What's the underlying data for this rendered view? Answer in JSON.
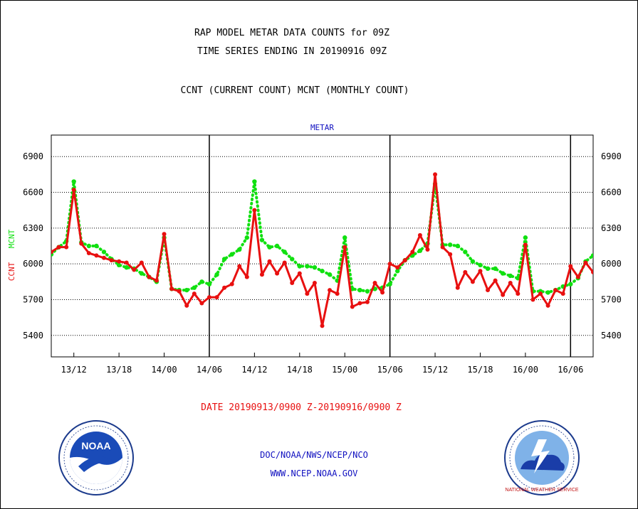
{
  "header": {
    "title_line1": "RAP MODEL METAR DATA COUNTS for 09Z",
    "title_line2": "TIME SERIES ENDING IN 20190916 09Z",
    "subtitle": "CCNT (CURRENT COUNT) MCNT (MONTHLY COUNT)"
  },
  "footer": {
    "date_range": "DATE 20190913/0900 Z-20190916/0900 Z",
    "org": "DOC/NOAA/NWS/NCEP/NCO",
    "url": "WWW.NCEP.NOAA.GOV"
  },
  "logos": {
    "noaa_text": "NOAA",
    "nws_text": "NATIONAL WEATHER SERVICE"
  },
  "colors": {
    "ccnt": "#e81010",
    "mcnt": "#10e010",
    "panel_title": "#1010c0",
    "footer_blue": "#1010c0",
    "footer_red": "#e81010"
  },
  "chart_data": {
    "type": "line",
    "title": "METAR",
    "ylabel_left": [
      "CCNT",
      "MCNT"
    ],
    "ylim": [
      5220,
      7080
    ],
    "yticks": [
      5400,
      5700,
      6000,
      6300,
      6600,
      6900
    ],
    "xlim": [
      0,
      72
    ],
    "xticks": [
      {
        "x": 3,
        "label": "13/12"
      },
      {
        "x": 9,
        "label": "13/18"
      },
      {
        "x": 15,
        "label": "14/00"
      },
      {
        "x": 21,
        "label": "14/06"
      },
      {
        "x": 27,
        "label": "14/12"
      },
      {
        "x": 33,
        "label": "14/18"
      },
      {
        "x": 39,
        "label": "15/00"
      },
      {
        "x": 45,
        "label": "15/06"
      },
      {
        "x": 51,
        "label": "15/12"
      },
      {
        "x": 57,
        "label": "15/18"
      },
      {
        "x": 63,
        "label": "16/00"
      },
      {
        "x": 69,
        "label": "16/06"
      }
    ],
    "day_boundaries": [
      21,
      45,
      69
    ],
    "x": [
      0,
      1,
      2,
      3,
      4,
      5,
      6,
      7,
      8,
      9,
      10,
      11,
      12,
      13,
      14,
      15,
      16,
      17,
      18,
      19,
      20,
      21,
      22,
      23,
      24,
      25,
      26,
      27,
      28,
      29,
      30,
      31,
      32,
      33,
      34,
      35,
      36,
      37,
      38,
      39,
      40,
      41,
      42,
      43,
      44,
      45,
      46,
      47,
      48,
      49,
      50,
      51,
      52,
      53,
      54,
      55,
      56,
      57,
      58,
      59,
      60,
      61,
      62,
      63,
      64,
      65,
      66,
      67,
      68,
      69,
      70,
      71,
      72
    ],
    "series": [
      {
        "name": "CCNT",
        "values": [
          6100,
          6140,
          6140,
          6620,
          6170,
          6090,
          6070,
          6050,
          6030,
          6020,
          6010,
          5950,
          6010,
          5890,
          5860,
          6250,
          5790,
          5770,
          5650,
          5750,
          5670,
          5720,
          5720,
          5800,
          5830,
          5980,
          5890,
          6450,
          5910,
          6020,
          5920,
          6010,
          5840,
          5920,
          5750,
          5840,
          5480,
          5780,
          5750,
          6140,
          5640,
          5670,
          5680,
          5840,
          5760,
          6000,
          5970,
          6030,
          6100,
          6240,
          6120,
          6750,
          6140,
          6080,
          5800,
          5930,
          5850,
          5940,
          5780,
          5860,
          5740,
          5840,
          5750,
          6160,
          5700,
          5750,
          5650,
          5780,
          5750,
          5980,
          5890,
          6010,
          5930
        ]
      },
      {
        "name": "MCNT",
        "values": [
          6080,
          6140,
          6190,
          6690,
          6180,
          6150,
          6150,
          6100,
          6040,
          5990,
          5970,
          5960,
          5920,
          5890,
          5850,
          6220,
          5790,
          5780,
          5780,
          5800,
          5850,
          5830,
          5910,
          6040,
          6080,
          6120,
          6220,
          6690,
          6200,
          6140,
          6150,
          6100,
          6040,
          5980,
          5980,
          5970,
          5940,
          5910,
          5860,
          6220,
          5790,
          5780,
          5770,
          5790,
          5800,
          5830,
          5940,
          6030,
          6070,
          6110,
          6170,
          6670,
          6160,
          6160,
          6150,
          6100,
          6020,
          5990,
          5960,
          5960,
          5920,
          5900,
          5880,
          6220,
          5770,
          5770,
          5760,
          5780,
          5810,
          5830,
          5880,
          6020,
          6070
        ]
      }
    ],
    "grid": true
  }
}
